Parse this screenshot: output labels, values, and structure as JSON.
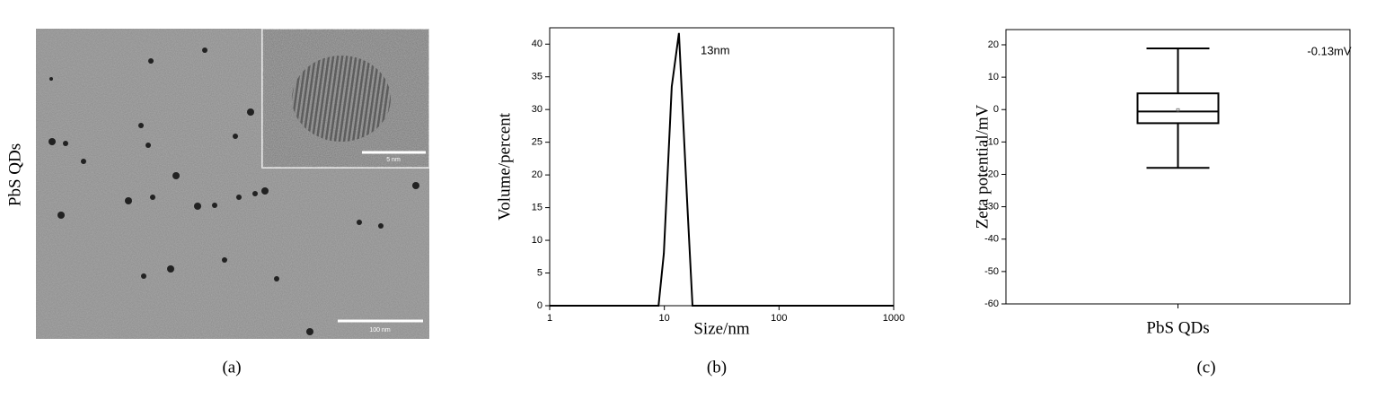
{
  "image_panel": {
    "ylabel": "PbS QDs",
    "scale_bar": "100 nm",
    "inset_scale_bar": "5 nm",
    "caption": "(a)"
  },
  "chart_data": [
    {
      "type": "line",
      "caption": "(b)",
      "xlabel": "Size/nm",
      "ylabel": "Volume/percent",
      "annotation": "13nm",
      "x": [
        1,
        8.9,
        9.9,
        11.6,
        13.4,
        15.8,
        17.6,
        1000
      ],
      "values": [
        0,
        0,
        8,
        33.5,
        41.7,
        16,
        0,
        0
      ],
      "color": "#000000",
      "xscale": "log",
      "xlim": [
        1,
        1000
      ],
      "xticks": [
        1,
        10,
        100,
        1000
      ],
      "ylim": [
        0,
        42.5
      ],
      "yticks": [
        0,
        5,
        10,
        15,
        20,
        25,
        30,
        35,
        40
      ]
    },
    {
      "type": "box",
      "caption": "(c)",
      "ylabel": "Zeta potential/mV",
      "annotation": "-0.13mV",
      "categories": [
        "PbS QDs"
      ],
      "whisker_low": -18,
      "q1": -4.2,
      "median": -0.6,
      "q3": 5,
      "whisker_high": 18.9,
      "mean": -0.13,
      "color": "#000000",
      "ylim": [
        -60,
        24.7
      ],
      "yticks": [
        -60,
        -50,
        -40,
        -30,
        -20,
        -10,
        0,
        10,
        20
      ]
    }
  ]
}
